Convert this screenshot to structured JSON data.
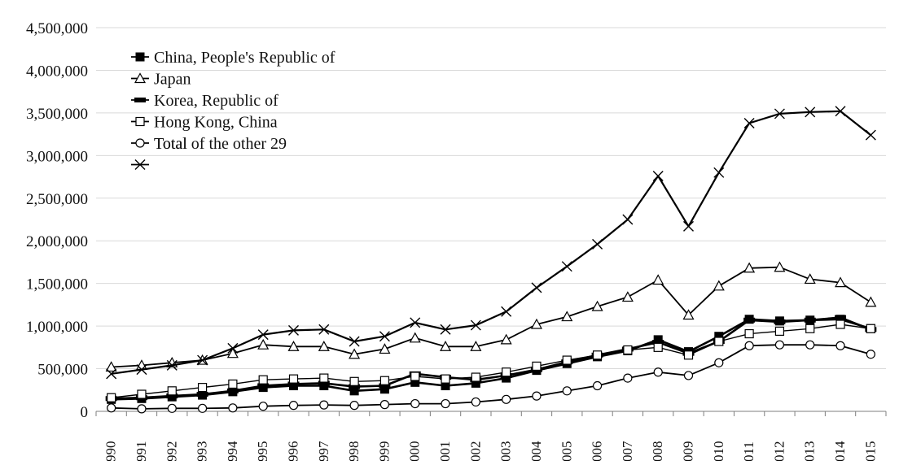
{
  "chart_data": {
    "type": "line",
    "title": "",
    "xlabel": "",
    "ylabel": "",
    "x": [
      "990",
      "991",
      "992",
      "993",
      "994",
      "995",
      "996",
      "997",
      "998",
      "999",
      "000",
      "001",
      "002",
      "003",
      "004",
      "005",
      "006",
      "007",
      "008",
      "009",
      "010",
      "011",
      "012",
      "013",
      "014",
      "015"
    ],
    "ylim": [
      0,
      4500000
    ],
    "yticks": [
      "0",
      "500,000",
      "1,000,000",
      "1,500,000",
      "2,000,000",
      "2,500,000",
      "3,000,000",
      "3,500,000",
      "4,000,000",
      "4,500,000"
    ],
    "grid": "horizontal",
    "legend_position": "top-left",
    "series": [
      {
        "name": "China, People's Republic of",
        "marker": "square-filled",
        "values": [
          140000,
          150000,
          170000,
          190000,
          230000,
          280000,
          300000,
          300000,
          240000,
          260000,
          340000,
          300000,
          330000,
          390000,
          480000,
          560000,
          640000,
          710000,
          840000,
          700000,
          880000,
          1080000,
          1060000,
          1070000,
          1080000,
          970000
        ]
      },
      {
        "name": "Japan",
        "marker": "triangle",
        "values": [
          520000,
          540000,
          570000,
          600000,
          680000,
          780000,
          760000,
          760000,
          670000,
          730000,
          860000,
          760000,
          760000,
          840000,
          1020000,
          1110000,
          1230000,
          1340000,
          1540000,
          1130000,
          1470000,
          1680000,
          1690000,
          1550000,
          1510000,
          1280000
        ]
      },
      {
        "name": "Korea, Republic of",
        "marker": "bar",
        "values": [
          150000,
          160000,
          180000,
          200000,
          240000,
          300000,
          320000,
          330000,
          290000,
          300000,
          440000,
          400000,
          370000,
          420000,
          490000,
          580000,
          660000,
          730000,
          810000,
          680000,
          820000,
          1070000,
          1050000,
          1070000,
          1100000,
          960000
        ]
      },
      {
        "name": "Hong Kong, China",
        "marker": "square-open",
        "values": [
          160000,
          200000,
          240000,
          280000,
          320000,
          370000,
          380000,
          390000,
          350000,
          360000,
          410000,
          380000,
          400000,
          460000,
          530000,
          600000,
          660000,
          720000,
          750000,
          660000,
          820000,
          910000,
          940000,
          970000,
          1020000,
          970000
        ]
      },
      {
        "name": "Total of the other 29",
        "marker": "circle",
        "values": [
          40000,
          30000,
          35000,
          35000,
          40000,
          60000,
          70000,
          75000,
          70000,
          80000,
          90000,
          90000,
          110000,
          140000,
          180000,
          240000,
          300000,
          390000,
          460000,
          420000,
          570000,
          770000,
          780000,
          780000,
          770000,
          670000
        ]
      },
      {
        "name": "Total",
        "marker": "x",
        "values": [
          440000,
          490000,
          540000,
          600000,
          740000,
          900000,
          950000,
          960000,
          820000,
          880000,
          1040000,
          960000,
          1010000,
          1170000,
          1450000,
          1700000,
          1960000,
          2250000,
          2760000,
          2170000,
          2800000,
          3380000,
          3490000,
          3510000,
          3520000,
          3240000
        ]
      }
    ],
    "legend": [
      {
        "label": "China, People's Republic of",
        "marker": "square-filled"
      },
      {
        "label": "Japan",
        "marker": "triangle"
      },
      {
        "label": "Korea, Republic of",
        "marker": "bar"
      },
      {
        "label": "Hong Kong, China",
        "marker": "square-open"
      },
      {
        "label": "Total of the other 29",
        "marker": "circle",
        "overlapping_label": "Total"
      },
      {
        "label": "",
        "marker": "x"
      }
    ]
  }
}
